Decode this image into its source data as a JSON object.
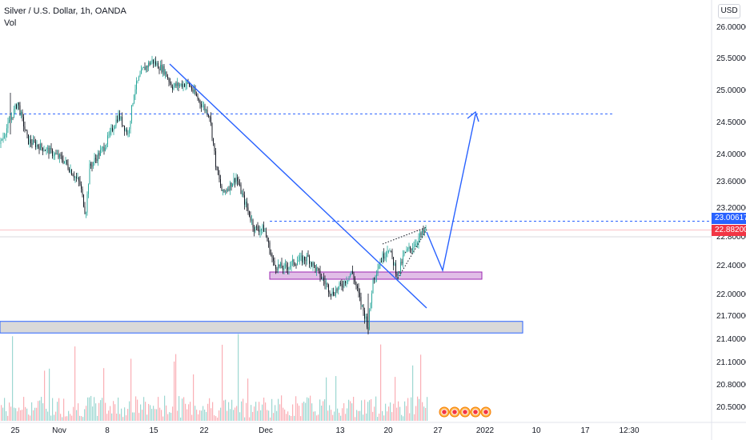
{
  "legend": {
    "symbol_line": "Silver / U.S. Dollar, 1h, OANDA",
    "volume_label": "Vol"
  },
  "currency_button": "USD",
  "price_tags": {
    "level": "23.00617",
    "last": "22.88200"
  },
  "colors": {
    "up_candle": "#26a69a",
    "down_candle": "#131722",
    "drawing": "#2962ff",
    "zone_purple": "#e1bee7",
    "zone_gray": "#d9d9d9",
    "level_red": "#f23645"
  },
  "chart_data": {
    "type": "candlestick",
    "title": "Silver / U.S. Dollar, 1h, OANDA",
    "y_axis_ticks": [
      "26.00000",
      "25.50000",
      "25.00000",
      "24.50000",
      "24.00000",
      "23.60000",
      "23.20000",
      "22.80000",
      "22.40000",
      "22.00000",
      "21.70000",
      "21.40000",
      "21.10000",
      "20.80000",
      "20.50000"
    ],
    "x_axis_ticks": [
      "25",
      "Nov",
      "8",
      "15",
      "22",
      "Dec",
      "13",
      "20",
      "27",
      "2022",
      "10",
      "17",
      "12:30"
    ],
    "approx_closes": [
      {
        "x": "25",
        "y": 24.3
      },
      {
        "x": "Nov",
        "y": 24.1
      },
      {
        "x": "8",
        "y": 24.4
      },
      {
        "x": "15",
        "y": 25.4
      },
      {
        "x": "22",
        "y": 24.9
      },
      {
        "x": "Dec",
        "y": 22.8
      },
      {
        "x": "13",
        "y": 22.1
      },
      {
        "x": "20",
        "y": 22.3
      },
      {
        "x": "27",
        "y": 22.9
      }
    ],
    "price_low": 21.45,
    "price_high": 25.45,
    "horizontal_levels": [
      24.62,
      23.00617,
      22.882
    ],
    "zones": [
      [
        22.2,
        22.3
      ],
      [
        21.47,
        21.62
      ]
    ],
    "projection_target": 24.62
  }
}
